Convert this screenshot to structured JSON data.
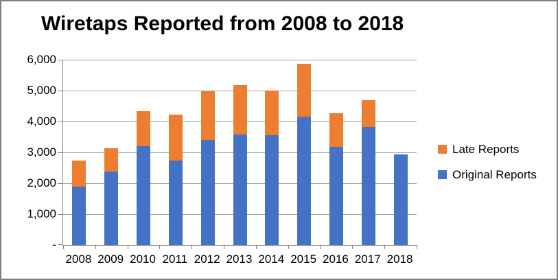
{
  "chart_data": {
    "type": "bar",
    "stacked": true,
    "title": "Wiretaps Reported from 2008 to 2018",
    "categories": [
      "2008",
      "2009",
      "2010",
      "2011",
      "2012",
      "2013",
      "2014",
      "2015",
      "2016",
      "2017",
      "2018"
    ],
    "series": [
      {
        "name": "Original Reports",
        "color": "#4472C4",
        "values": [
          1891,
          2376,
          3194,
          2732,
          3395,
          3576,
          3554,
          4148,
          3168,
          3813,
          2937
        ]
      },
      {
        "name": "Late Reports",
        "color": "#ED7D31",
        "values": [
          840,
          750,
          1130,
          1500,
          1590,
          1610,
          1440,
          1730,
          1090,
          880,
          0
        ]
      }
    ],
    "legend": {
      "position": "right-middle",
      "entries": [
        "Late Reports",
        "Original Reports"
      ]
    },
    "y_axis": {
      "min": 0,
      "max": 6000,
      "tick_interval": 1000,
      "tick_labels_bottom_to_top": [
        "-",
        "1,000",
        "2,000",
        "3,000",
        "4,000",
        "5,000",
        "6,000"
      ]
    },
    "x_axis": {
      "tick_labels": [
        "2008",
        "2009",
        "2010",
        "2011",
        "2012",
        "2013",
        "2014",
        "2015",
        "2016",
        "2017",
        "2018"
      ]
    },
    "grid": true,
    "colors": {
      "axis": "#808080",
      "gridline": "#A0A0A0",
      "frame_border": "#7F7F7F",
      "text": "#000000"
    }
  }
}
